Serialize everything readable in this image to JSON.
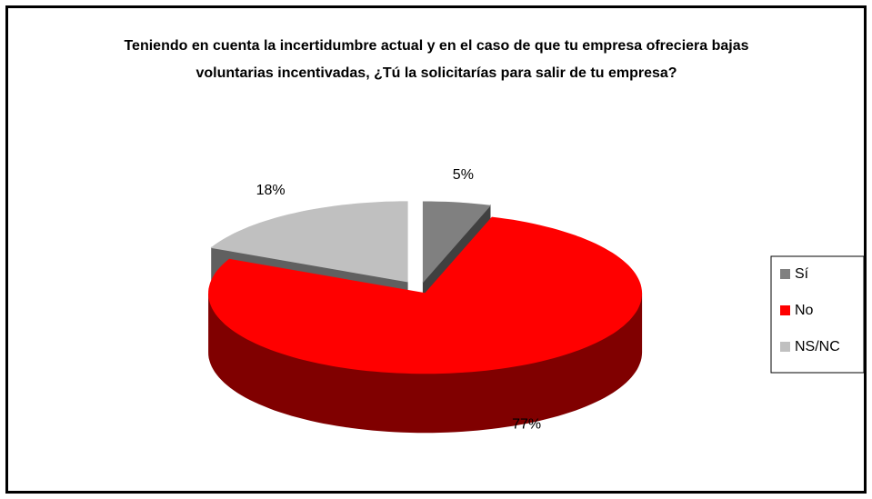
{
  "chart_data": {
    "type": "pie3d",
    "title": "Teniendo en cuenta la incertidumbre actual y en el caso de que tu empresa ofreciera bajas voluntarias incentivadas, ¿Tú la solicitarías para salir de tu empresa?",
    "categories": [
      "Sí",
      "No",
      "NS/NC"
    ],
    "values": [
      5,
      77,
      18
    ],
    "value_labels": [
      "5%",
      "77%",
      "18%"
    ],
    "colors": [
      "#808080",
      "#ff0000",
      "#c0c0c0"
    ],
    "legend": "right"
  }
}
